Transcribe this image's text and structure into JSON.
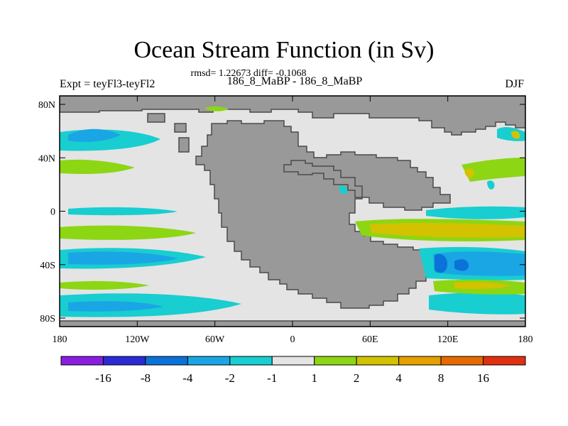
{
  "header": {
    "title": "Ocean Stream Function (in Sv)",
    "stats": "rmsd= 1.22673 diff= -0.1068",
    "left_label": "Expt = teyFl3-teyFl2",
    "center_label": "186_8_MaBP - 186_8_MaBP",
    "right_label": "DJF"
  },
  "map": {
    "x_ticks": [
      "180",
      "120W",
      "60W",
      "0",
      "60E",
      "120E",
      "180"
    ],
    "y_ticks": [
      "80N",
      "40N",
      "0",
      "40S",
      "80S"
    ],
    "lon_range": [
      -180,
      180
    ],
    "lat_range": [
      -90,
      90
    ]
  },
  "colorbar": {
    "labels": [
      "-16",
      "-8",
      "-4",
      "-2",
      "-1",
      "1",
      "2",
      "4",
      "8",
      "16"
    ],
    "colors": [
      "#8a1de2",
      "#2a2ad6",
      "#0a72d8",
      "#1aa6e4",
      "#18ced0",
      "#e4e4e4",
      "#8cd614",
      "#d2c200",
      "#e6a000",
      "#e66a00",
      "#e03010"
    ]
  },
  "colors": {
    "land": "#999999",
    "ocean_neutral": "#e4e4e4",
    "coast": "#4a4a4a"
  }
}
